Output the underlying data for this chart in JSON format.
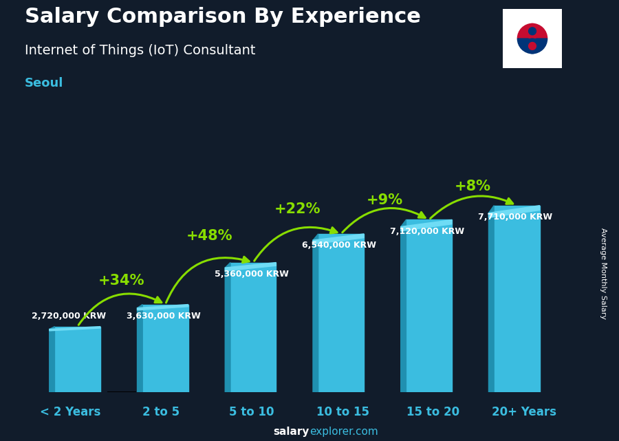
{
  "title_main": "Salary Comparison By Experience",
  "title_sub": "Internet of Things (IoT) Consultant",
  "city": "Seoul",
  "categories": [
    "< 2 Years",
    "2 to 5",
    "5 to 10",
    "10 to 15",
    "15 to 20",
    "20+ Years"
  ],
  "values": [
    2720000,
    3630000,
    5360000,
    6540000,
    7120000,
    7710000
  ],
  "value_labels": [
    "2,720,000 KRW",
    "3,630,000 KRW",
    "5,360,000 KRW",
    "6,540,000 KRW",
    "7,120,000 KRW",
    "7,710,000 KRW"
  ],
  "pct_labels": [
    "+34%",
    "+48%",
    "+22%",
    "+9%",
    "+8%"
  ],
  "bar_color": "#3BBDE0",
  "bar_color_left": "#2090B0",
  "bar_color_top": "#6FDCF5",
  "bg_color": "#111C2B",
  "text_color_white": "#ffffff",
  "text_color_cyan": "#3BBDE0",
  "text_color_green": "#88DD00",
  "ylabel": "Average Monthly Salary",
  "footer_bold": "salary",
  "footer_normal": "explorer.com",
  "ylim_max": 10000000,
  "bar_width": 0.52
}
